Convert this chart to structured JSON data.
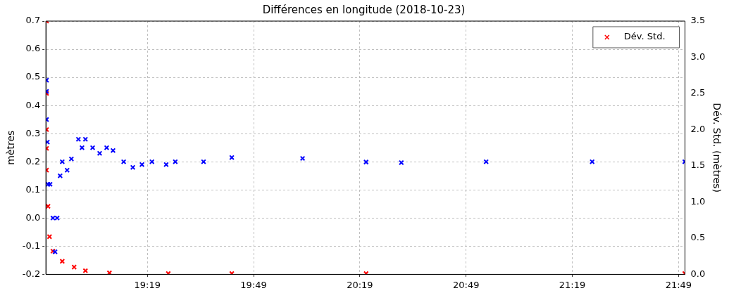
{
  "chart_data": {
    "type": "scatter",
    "title": "Différences en longitude (2018-10-23)",
    "ylabel": "mètres",
    "y2label": "Dév. Std. (mètres)",
    "xlim": [
      18.839,
      21.847
    ],
    "xticks": [
      {
        "value": 19.3167,
        "label": "19:19"
      },
      {
        "value": 19.8167,
        "label": "19:49"
      },
      {
        "value": 20.3167,
        "label": "20:19"
      },
      {
        "value": 20.8167,
        "label": "20:49"
      },
      {
        "value": 21.3167,
        "label": "21:19"
      },
      {
        "value": 21.8167,
        "label": "21:49"
      }
    ],
    "ylim": [
      -0.2,
      0.7
    ],
    "yticks": [
      -0.2,
      -0.1,
      {
        "value": 0,
        "label": "0.0"
      },
      0.1,
      0.2,
      0.3,
      0.4,
      0.5,
      0.6,
      0.7
    ],
    "y2lim": [
      0,
      3.5
    ],
    "y2ticks": [
      {
        "value": 0,
        "label": "0.0"
      },
      0.5,
      {
        "value": 1,
        "label": "1.0"
      },
      1.5,
      {
        "value": 2,
        "label": "2.0"
      },
      2.5,
      {
        "value": 3,
        "label": "3.0"
      },
      3.5
    ],
    "grid": true,
    "legend": "top right",
    "marker": "cross",
    "series": [
      {
        "color": "#0000ff",
        "axis": "y",
        "x": [
          18.842,
          18.842,
          18.842,
          18.846,
          18.849,
          18.859,
          18.872,
          18.882,
          18.892,
          18.906,
          18.916,
          18.939,
          18.959,
          18.992,
          19.009,
          19.025,
          19.059,
          19.092,
          19.125,
          19.155,
          19.205,
          19.248,
          19.291,
          19.338,
          19.405,
          19.448,
          19.581,
          19.714,
          20.047,
          20.346,
          20.512,
          20.911,
          21.41,
          21.846
        ],
        "values": [
          0.49,
          0.45,
          0.35,
          0.27,
          0.12,
          0.12,
          0.0,
          -0.12,
          0.0,
          0.15,
          0.2,
          0.17,
          0.21,
          0.28,
          0.25,
          0.28,
          0.25,
          0.23,
          0.25,
          0.24,
          0.2,
          0.18,
          0.19,
          0.2,
          0.19,
          0.2,
          0.2,
          0.215,
          0.212,
          0.199,
          0.197,
          0.2,
          0.2,
          0.2
        ]
      },
      {
        "name": "Dév. Std.",
        "color": "#ff0000",
        "axis": "y2",
        "x": [
          18.842,
          18.842,
          18.842,
          18.842,
          18.842,
          18.849,
          18.856,
          18.872,
          18.916,
          18.972,
          19.025,
          19.138,
          19.415,
          19.714,
          20.346,
          21.846
        ],
        "values": [
          3.5,
          2.5,
          2.0,
          1.74,
          1.44,
          0.94,
          0.52,
          0.32,
          0.18,
          0.1,
          0.05,
          0.02,
          0.01,
          0.01,
          0.01,
          0.01
        ]
      }
    ]
  }
}
